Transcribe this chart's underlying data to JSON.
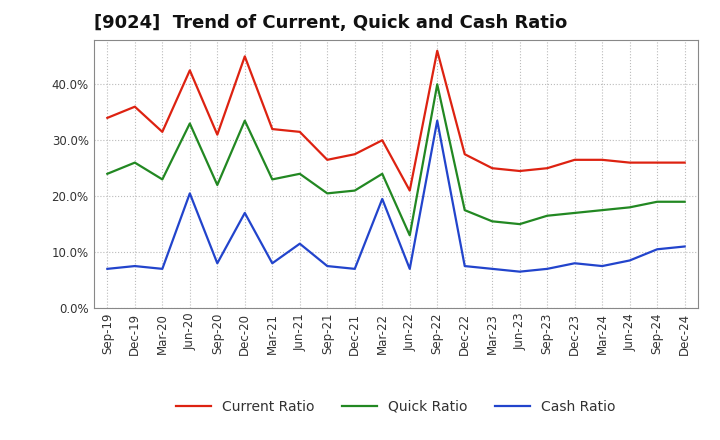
{
  "title": "[9024]  Trend of Current, Quick and Cash Ratio",
  "labels": [
    "Sep-19",
    "Dec-19",
    "Mar-20",
    "Jun-20",
    "Sep-20",
    "Dec-20",
    "Mar-21",
    "Jun-21",
    "Sep-21",
    "Dec-21",
    "Mar-22",
    "Jun-22",
    "Sep-22",
    "Dec-22",
    "Mar-23",
    "Jun-23",
    "Sep-23",
    "Dec-23",
    "Mar-24",
    "Jun-24",
    "Sep-24",
    "Dec-24"
  ],
  "current_ratio": [
    34.0,
    36.0,
    31.5,
    42.5,
    31.0,
    45.0,
    32.0,
    31.5,
    26.5,
    27.5,
    30.0,
    21.0,
    46.0,
    27.5,
    25.0,
    24.5,
    25.0,
    26.5,
    26.5,
    26.0,
    26.0,
    26.0
  ],
  "quick_ratio": [
    24.0,
    26.0,
    23.0,
    33.0,
    22.0,
    33.5,
    23.0,
    24.0,
    20.5,
    21.0,
    24.0,
    13.0,
    40.0,
    17.5,
    15.5,
    15.0,
    16.5,
    17.0,
    17.5,
    18.0,
    19.0,
    19.0
  ],
  "cash_ratio": [
    7.0,
    7.5,
    7.0,
    20.5,
    8.0,
    17.0,
    8.0,
    11.5,
    7.5,
    7.0,
    19.5,
    7.0,
    33.5,
    7.5,
    7.0,
    6.5,
    7.0,
    8.0,
    7.5,
    8.5,
    10.5,
    11.0
  ],
  "current_color": "#dd2211",
  "quick_color": "#228822",
  "cash_color": "#2244cc",
  "ylim": [
    0,
    48
  ],
  "yticks": [
    0,
    10,
    20,
    30,
    40
  ],
  "background_color": "#ffffff",
  "plot_bg_color": "#ffffff",
  "grid_color": "#bbbbbb",
  "legend_labels": [
    "Current Ratio",
    "Quick Ratio",
    "Cash Ratio"
  ],
  "title_fontsize": 13,
  "tick_fontsize": 8.5,
  "legend_fontsize": 10
}
